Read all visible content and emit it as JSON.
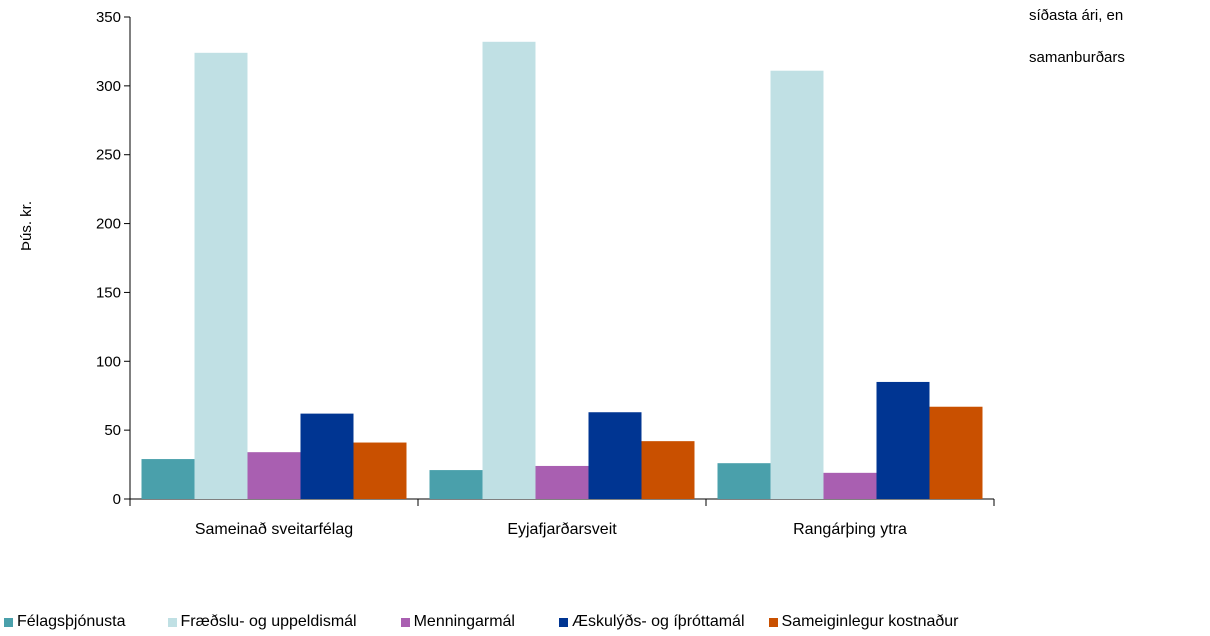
{
  "side_text": {
    "line1": "síðasta ári, en",
    "line2": "samanburðars"
  },
  "chart_data": {
    "type": "bar",
    "title": "",
    "xlabel": "",
    "ylabel": "Þús. kr.",
    "ylim": [
      0,
      350
    ],
    "yticks": [
      "0",
      "50",
      "100",
      "150",
      "200",
      "250",
      "300",
      "350"
    ],
    "categories": [
      "Sameinað sveitarfélag",
      "Eyjafjarðarsveit",
      "Rangárþing ytra"
    ],
    "series": [
      {
        "name": "Félagsþjónusta",
        "color": "#4aa0ab",
        "values": [
          29,
          21,
          26
        ]
      },
      {
        "name": "Fræðslu- og uppeldismál",
        "color": "#c0e0e4",
        "values": [
          324,
          332,
          311
        ]
      },
      {
        "name": "Menningarmál",
        "color": "#a95fb1",
        "values": [
          34,
          24,
          19
        ]
      },
      {
        "name": "Æskulýðs- og íþróttamál",
        "color": "#003592",
        "values": [
          62,
          63,
          85
        ]
      },
      {
        "name": "Sameiginlegur kostnaður",
        "color": "#c95000",
        "values": [
          41,
          42,
          67
        ]
      }
    ],
    "grid": false,
    "legend_position": "bottom"
  }
}
